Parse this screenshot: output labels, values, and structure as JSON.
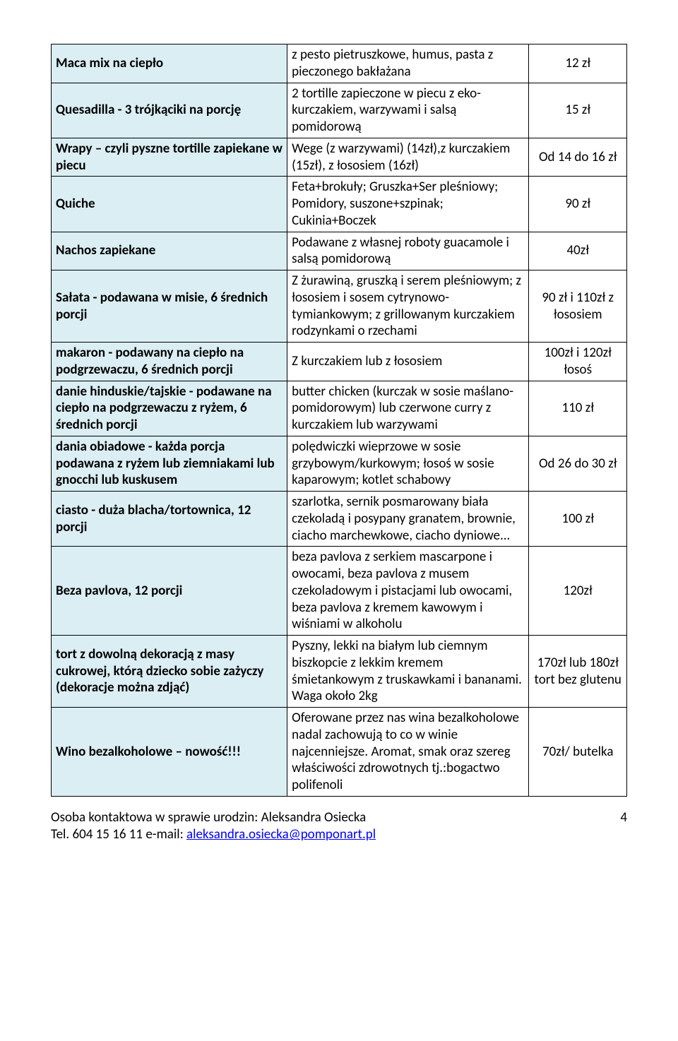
{
  "rows": [
    {
      "name": "Maca mix na ciepło",
      "desc": "z pesto pietruszkowe, humus, pasta z pieczonego bakłażana",
      "price": "12 zł"
    },
    {
      "name": "Quesadilla - 3 trójkąciki na porcję",
      "desc": "2 tortille zapieczone w piecu z eko-kurczakiem, warzywami i salsą pomidorową",
      "price": "15 zł"
    },
    {
      "name": "Wrapy – czyli pyszne tortille zapiekane w piecu",
      "desc": "Wege (z warzywami) (14zł),z kurczakiem (15zł), z łososiem (16zł)",
      "price": "Od 14 do 16 zł"
    },
    {
      "name": "Quiche",
      "desc": "Feta+brokuły;  Gruszka+Ser pleśniowy; Pomidory, suszone+szpinak; Cukinia+Boczek",
      "price": "90 zł"
    },
    {
      "name": "Nachos zapiekane",
      "desc": "Podawane z własnej roboty guacamole i salsą pomidorową",
      "price": "40zł"
    },
    {
      "name": "Sałata - podawana w misie, 6 średnich porcji",
      "desc": "Z żurawiną, gruszką i serem pleśniowym; z łososiem i sosem cytrynowo-tymiankowym; z grillowanym kurczakiem rodzynkami o rzechami",
      "price": "90 zł i 110zł z łososiem"
    },
    {
      "name": "makaron - podawany na ciepło na podgrzewaczu, 6 średnich porcji",
      "desc": "Z kurczakiem lub z łososiem",
      "price": "100zł i 120zł łosoś"
    },
    {
      "name": "danie hinduskie/tajskie - podawane na ciepło na podgrzewaczu z ryżem, 6 średnich porcji",
      "desc": "butter chicken (kurczak w sosie maślano-pomidorowym) lub czerwone curry z kurczakiem lub warzywami",
      "price": "110 zł"
    },
    {
      "name": "dania obiadowe - każda porcja podawana z ryżem lub ziemniakami lub gnocchi lub kuskusem",
      "desc": "polędwiczki wieprzowe w sosie grzybowym/kurkowym; łosoś w sosie kaparowym; kotlet schabowy",
      "price": "Od 26 do 30 zł"
    },
    {
      "name": "ciasto - duża blacha/tortownica, 12 porcji",
      "desc": "szarlotka, sernik posmarowany biała czekoladą i posypany granatem, brownie, ciacho marchewkowe, ciacho dyniowe...",
      "price": "100 zł"
    },
    {
      "name": "Beza pavlova, 12 porcji",
      "desc": "beza pavlova z serkiem mascarpone i owocami, beza pavlova z musem czekoladowym i pistacjami lub owocami, beza pavlova z kremem kawowym i wiśniami w alkoholu",
      "price": "120zł"
    },
    {
      "name": "tort z dowolną dekoracją z masy cukrowej, którą dziecko sobie zażyczy (dekoracje można zdjąć)",
      "desc": "Pyszny, lekki na białym lub ciemnym biszkopcie z lekkim kremem śmietankowym z truskawkami i bananami. Waga około 2kg",
      "price": "170zł lub 180zł tort bez glutenu"
    },
    {
      "name": "Wino bezalkoholowe – nowość!!!",
      "desc": "Oferowane przez nas wina bezalkoholowe nadal zachowują to co w winie najcenniejsze. Aromat, smak oraz szereg właściwości zdrowotnych tj.:bogactwo polifenoli",
      "price": "70zł/ butelka"
    }
  ],
  "footer": {
    "contact_line": "Osoba kontaktowa w sprawie urodzin: Aleksandra Osiecka",
    "tel_prefix": "Tel. 604 15 16 11 e-mail: ",
    "email": "aleksandra.osiecka@pomponart.pl",
    "page_number": "4"
  }
}
